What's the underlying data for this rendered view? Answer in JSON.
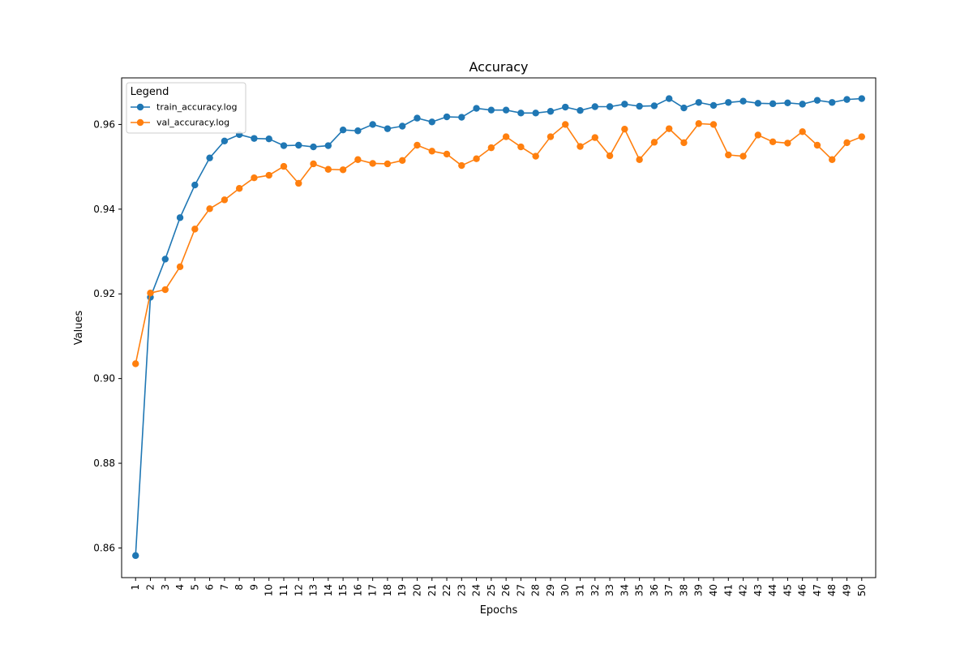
{
  "chart_data": {
    "type": "line",
    "title": "Accuracy",
    "xlabel": "Epochs",
    "ylabel": "Values",
    "x": [
      1,
      2,
      3,
      4,
      5,
      6,
      7,
      8,
      9,
      10,
      11,
      12,
      13,
      14,
      15,
      16,
      17,
      18,
      19,
      20,
      21,
      22,
      23,
      24,
      25,
      26,
      27,
      28,
      29,
      30,
      31,
      32,
      33,
      34,
      35,
      36,
      37,
      38,
      39,
      40,
      41,
      42,
      43,
      44,
      45,
      46,
      47,
      48,
      49,
      50
    ],
    "ylim": [
      0.853,
      0.971
    ],
    "yticks": [
      0.86,
      0.88,
      0.9,
      0.92,
      0.94,
      0.96
    ],
    "ytick_labels": [
      "0.86",
      "0.88",
      "0.90",
      "0.92",
      "0.94",
      "0.96"
    ],
    "grid": false,
    "legend": {
      "title": "Legend",
      "placement": "upper-left"
    },
    "series": [
      {
        "name": "train_accuracy.log",
        "color": "#1f77b4",
        "marker": "circle",
        "values": [
          0.8582,
          0.9192,
          0.9282,
          0.938,
          0.9457,
          0.9521,
          0.9561,
          0.9576,
          0.9567,
          0.9566,
          0.955,
          0.9551,
          0.9547,
          0.955,
          0.9587,
          0.9585,
          0.96,
          0.959,
          0.9596,
          0.9615,
          0.9606,
          0.9618,
          0.9617,
          0.9638,
          0.9634,
          0.9634,
          0.9627,
          0.9627,
          0.9631,
          0.9641,
          0.9633,
          0.9642,
          0.9642,
          0.9648,
          0.9643,
          0.9644,
          0.9661,
          0.9639,
          0.9652,
          0.9645,
          0.9652,
          0.9655,
          0.965,
          0.9649,
          0.9651,
          0.9648,
          0.9657,
          0.9652,
          0.9659,
          0.9661
        ]
      },
      {
        "name": "val_accuracy.log",
        "color": "#ff7f0e",
        "marker": "circle",
        "values": [
          0.9035,
          0.9202,
          0.921,
          0.9264,
          0.9353,
          0.9401,
          0.9422,
          0.9449,
          0.9474,
          0.948,
          0.9501,
          0.9461,
          0.9507,
          0.9494,
          0.9493,
          0.9517,
          0.9508,
          0.9507,
          0.9515,
          0.9551,
          0.9537,
          0.953,
          0.9503,
          0.9519,
          0.9545,
          0.9571,
          0.9547,
          0.9525,
          0.9571,
          0.96,
          0.9548,
          0.9569,
          0.9526,
          0.9589,
          0.9517,
          0.9558,
          0.959,
          0.9557,
          0.9602,
          0.96,
          0.9528,
          0.9525,
          0.9575,
          0.9559,
          0.9556,
          0.9583,
          0.9551,
          0.9517,
          0.9557,
          0.9571
        ]
      }
    ]
  }
}
